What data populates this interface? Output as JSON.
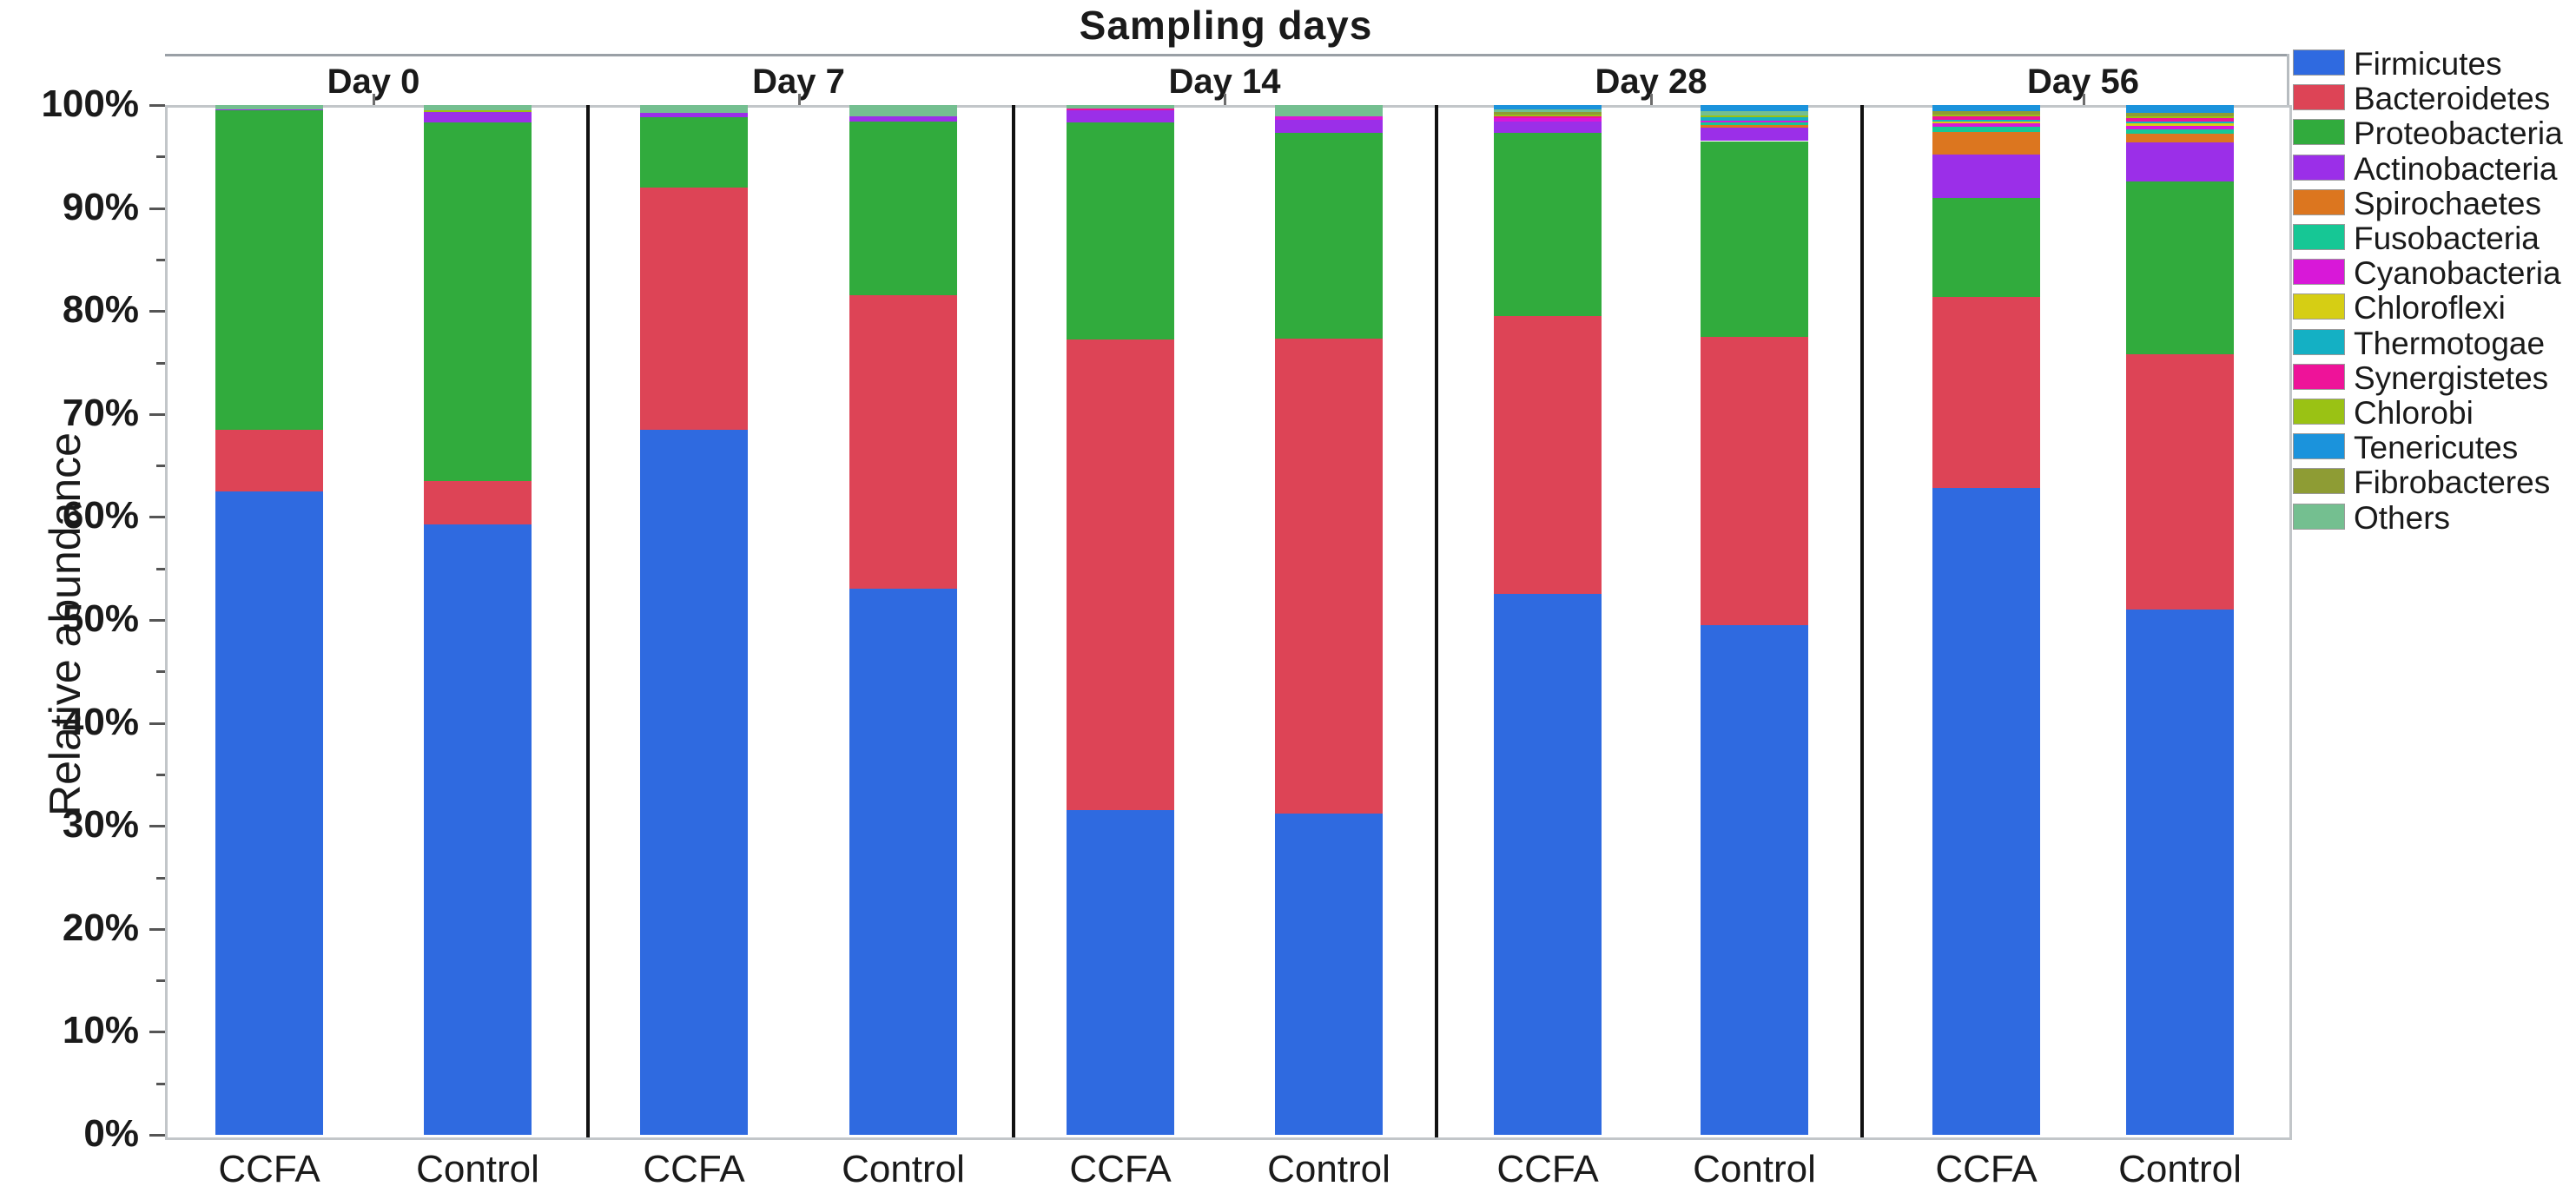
{
  "chart_data": {
    "type": "bar",
    "stacked": true,
    "title": "Sampling days",
    "ylabel": "Relative abundance",
    "y_ticks": [
      "100%",
      "90%",
      "80%",
      "70%",
      "60%",
      "50%",
      "40%",
      "30%",
      "20%",
      "10%",
      "0%"
    ],
    "ylim": [
      0,
      100
    ],
    "grid": false,
    "legend_position": "right",
    "bar_labels": [
      "CCFA",
      "Control"
    ],
    "legend": [
      {
        "label": "Firmicutes",
        "color": "#2f6ae0"
      },
      {
        "label": "Bacteroidetes",
        "color": "#dd4456"
      },
      {
        "label": "Proteobacteria",
        "color": "#31ab3d"
      },
      {
        "label": "Actinobacteria",
        "color": "#9b2fe8"
      },
      {
        "label": "Spirochaetes",
        "color": "#dc761f"
      },
      {
        "label": "Fusobacteria",
        "color": "#16c795"
      },
      {
        "label": "Cyanobacteria",
        "color": "#d818d8"
      },
      {
        "label": "Chloroflexi",
        "color": "#d6ce14"
      },
      {
        "label": "Thermotogae",
        "color": "#14b0c4"
      },
      {
        "label": "Synergistetes",
        "color": "#ee1399"
      },
      {
        "label": "Chlorobi",
        "color": "#9ac214"
      },
      {
        "label": "Tenericutes",
        "color": "#1b93dc"
      },
      {
        "label": "Fibrobacteres",
        "color": "#8e9c34"
      },
      {
        "label": "Others",
        "color": "#74bf90"
      }
    ],
    "groups": [
      {
        "label": "Day 0",
        "bars": [
          {
            "label": "CCFA",
            "segments": [
              {
                "phylum": "Firmicutes",
                "pct": 62.5
              },
              {
                "phylum": "Bacteroidetes",
                "pct": 6.0
              },
              {
                "phylum": "Proteobacteria",
                "pct": 31.0
              },
              {
                "phylum": "Actinobacteria",
                "pct": 0.1
              },
              {
                "phylum": "Others",
                "pct": 0.4
              }
            ]
          },
          {
            "label": "Control",
            "segments": [
              {
                "phylum": "Firmicutes",
                "pct": 59.3
              },
              {
                "phylum": "Bacteroidetes",
                "pct": 4.2
              },
              {
                "phylum": "Proteobacteria",
                "pct": 34.8
              },
              {
                "phylum": "Actinobacteria",
                "pct": 1.0
              },
              {
                "phylum": "Chlorobi",
                "pct": 0.2
              },
              {
                "phylum": "Others",
                "pct": 0.5
              }
            ]
          }
        ]
      },
      {
        "label": "Day 7",
        "bars": [
          {
            "label": "CCFA",
            "segments": [
              {
                "phylum": "Firmicutes",
                "pct": 68.5
              },
              {
                "phylum": "Bacteroidetes",
                "pct": 23.5
              },
              {
                "phylum": "Proteobacteria",
                "pct": 6.8
              },
              {
                "phylum": "Actinobacteria",
                "pct": 0.4
              },
              {
                "phylum": "Others",
                "pct": 0.8
              }
            ]
          },
          {
            "label": "Control",
            "segments": [
              {
                "phylum": "Firmicutes",
                "pct": 53.0
              },
              {
                "phylum": "Bacteroidetes",
                "pct": 28.5
              },
              {
                "phylum": "Proteobacteria",
                "pct": 16.9
              },
              {
                "phylum": "Actinobacteria",
                "pct": 0.5
              },
              {
                "phylum": "Others",
                "pct": 1.1
              }
            ]
          }
        ]
      },
      {
        "label": "Day 14",
        "bars": [
          {
            "label": "CCFA",
            "segments": [
              {
                "phylum": "Firmicutes",
                "pct": 31.5
              },
              {
                "phylum": "Bacteroidetes",
                "pct": 45.7
              },
              {
                "phylum": "Proteobacteria",
                "pct": 21.1
              },
              {
                "phylum": "Actinobacteria",
                "pct": 1.2
              },
              {
                "phylum": "Synergistetes",
                "pct": 0.2
              },
              {
                "phylum": "Others",
                "pct": 0.3
              }
            ]
          },
          {
            "label": "Control",
            "segments": [
              {
                "phylum": "Firmicutes",
                "pct": 31.2
              },
              {
                "phylum": "Bacteroidetes",
                "pct": 46.1
              },
              {
                "phylum": "Proteobacteria",
                "pct": 20.0
              },
              {
                "phylum": "Actinobacteria",
                "pct": 1.3
              },
              {
                "phylum": "Cyanobacteria",
                "pct": 0.3
              },
              {
                "phylum": "Others",
                "pct": 1.1
              }
            ]
          }
        ]
      },
      {
        "label": "Day 28",
        "bars": [
          {
            "label": "CCFA",
            "segments": [
              {
                "phylum": "Firmicutes",
                "pct": 52.5
              },
              {
                "phylum": "Bacteroidetes",
                "pct": 27.0
              },
              {
                "phylum": "Proteobacteria",
                "pct": 17.8
              },
              {
                "phylum": "Actinobacteria",
                "pct": 1.1
              },
              {
                "phylum": "Cyanobacteria",
                "pct": 0.3
              },
              {
                "phylum": "Synergistetes",
                "pct": 0.2
              },
              {
                "phylum": "Chlorobi",
                "pct": 0.2
              },
              {
                "phylum": "Fibrobacteres",
                "pct": 0.2
              },
              {
                "phylum": "Others",
                "pct": 0.3
              },
              {
                "phylum": "Tenericutes",
                "pct": 0.4
              }
            ]
          },
          {
            "label": "Control",
            "segments": [
              {
                "phylum": "Firmicutes",
                "pct": 49.5
              },
              {
                "phylum": "Bacteroidetes",
                "pct": 28.0
              },
              {
                "phylum": "Proteobacteria",
                "pct": 19.0
              },
              {
                "phylum": "Actinobacteria",
                "pct": 1.3
              },
              {
                "phylum": "Spirochaetes",
                "pct": 0.3
              },
              {
                "phylum": "Fusobacteria",
                "pct": 0.2
              },
              {
                "phylum": "Cyanobacteria",
                "pct": 0.2
              },
              {
                "phylum": "Thermotogae",
                "pct": 0.3
              },
              {
                "phylum": "Chlorobi",
                "pct": 0.2
              },
              {
                "phylum": "Others",
                "pct": 0.4
              },
              {
                "phylum": "Tenericutes",
                "pct": 0.6
              }
            ]
          }
        ]
      },
      {
        "label": "Day 56",
        "bars": [
          {
            "label": "CCFA",
            "segments": [
              {
                "phylum": "Firmicutes",
                "pct": 62.8
              },
              {
                "phylum": "Bacteroidetes",
                "pct": 18.6
              },
              {
                "phylum": "Proteobacteria",
                "pct": 9.6
              },
              {
                "phylum": "Actinobacteria",
                "pct": 4.2
              },
              {
                "phylum": "Spirochaetes",
                "pct": 2.2
              },
              {
                "phylum": "Fusobacteria",
                "pct": 0.5
              },
              {
                "phylum": "Cyanobacteria",
                "pct": 0.3
              },
              {
                "phylum": "Chloroflexi",
                "pct": 0.2
              },
              {
                "phylum": "Thermotogae",
                "pct": 0.2
              },
              {
                "phylum": "Synergistetes",
                "pct": 0.3
              },
              {
                "phylum": "Chlorobi",
                "pct": 0.2
              },
              {
                "phylum": "Fibrobacteres",
                "pct": 0.3
              },
              {
                "phylum": "Tenericutes",
                "pct": 0.6
              }
            ]
          },
          {
            "label": "Control",
            "segments": [
              {
                "phylum": "Firmicutes",
                "pct": 51.0
              },
              {
                "phylum": "Bacteroidetes",
                "pct": 24.8
              },
              {
                "phylum": "Proteobacteria",
                "pct": 16.8
              },
              {
                "phylum": "Actinobacteria",
                "pct": 3.8
              },
              {
                "phylum": "Spirochaetes",
                "pct": 0.8
              },
              {
                "phylum": "Fusobacteria",
                "pct": 0.4
              },
              {
                "phylum": "Cyanobacteria",
                "pct": 0.4
              },
              {
                "phylum": "Chloroflexi",
                "pct": 0.2
              },
              {
                "phylum": "Thermotogae",
                "pct": 0.2
              },
              {
                "phylum": "Synergistetes",
                "pct": 0.3
              },
              {
                "phylum": "Chlorobi",
                "pct": 0.2
              },
              {
                "phylum": "Fibrobacteres",
                "pct": 0.3
              },
              {
                "phylum": "Tenericutes",
                "pct": 0.8
              }
            ]
          }
        ]
      }
    ]
  }
}
